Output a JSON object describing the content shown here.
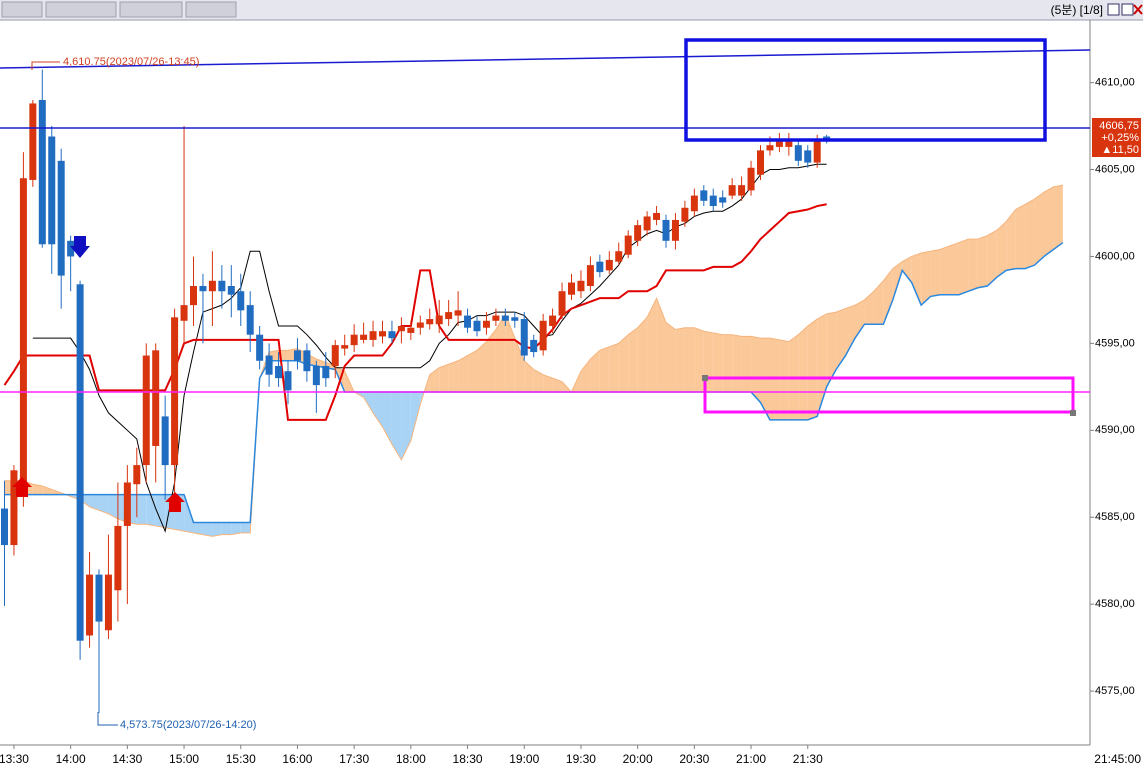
{
  "header": {
    "title": "(5분) [1/8]"
  },
  "chart_data": {
    "type": "candlestick",
    "categories": [
      null,
      "13:30",
      null,
      null,
      null,
      null,
      null,
      "14:00",
      null,
      null,
      null,
      null,
      null,
      "14:30",
      null,
      null,
      null,
      null,
      null,
      "15:00",
      null,
      null,
      null,
      null,
      null,
      "15:30",
      null,
      null,
      null,
      null,
      null,
      "16:00",
      null,
      null,
      null,
      null,
      null,
      "17:30",
      null,
      null,
      null,
      null,
      null,
      "18:00",
      null,
      null,
      null,
      null,
      null,
      "18:30",
      null,
      null,
      null,
      null,
      null,
      "19:00",
      null,
      null,
      null,
      null,
      null,
      "19:30",
      null,
      null,
      null,
      null,
      null,
      "20:00",
      null,
      null,
      null,
      null,
      null,
      "20:30",
      null,
      null,
      null,
      null,
      null,
      "21:00",
      null,
      null,
      null,
      null,
      null,
      "21:30",
      null,
      null,
      null,
      null,
      null,
      null,
      null,
      null,
      null,
      null,
      null,
      null,
      null,
      null,
      null,
      null,
      null,
      null,
      null,
      null,
      null,
      null,
      null,
      null,
      null,
      null,
      null
    ],
    "x_end_label": "21:45:00",
    "candles": {
      "up_color": "#d8340e",
      "down_color": "#1f6cc0",
      "open": [
        4585.5,
        4583.4,
        4586.6,
        4604.4,
        4609,
        4606.9,
        4605.5,
        4600.9,
        4598.4,
        4578.2,
        4581.7,
        4578.5,
        4580.8,
        4584.5,
        4586.9,
        4588,
        4589.1,
        4590.8,
        4588,
        4596.3,
        4597.2,
        4598.3,
        4598,
        4598.6,
        4598.3,
        4598,
        4597.2,
        4595.5,
        4594.3,
        4593.7,
        4593.4,
        4594.6,
        4594.6,
        4593.7,
        4593.7,
        4593.7,
        4594.7,
        4594.9,
        4595.2,
        4595.2,
        4595.4,
        4595.7,
        4595.7,
        4595.6,
        4595.9,
        4596.1,
        4596.1,
        4596.4,
        4596.6,
        4596.6,
        4596.3,
        4595.9,
        4596.3,
        4596.6,
        4596.5,
        4596.4,
        4595.2,
        4594.6,
        4596,
        4596.6,
        4597.8,
        4598,
        4598.3,
        4599.7,
        4599.2,
        4599.7,
        4600.1,
        4600.9,
        4601.5,
        4602.1,
        4602.1,
        4600.9,
        4602,
        4602.6,
        4603.8,
        4603.5,
        4603.4,
        4603.5,
        4603.5,
        4603.8,
        4604.7,
        4606.1,
        4606.3,
        4606.3,
        4606.4,
        4606.1,
        4605.4,
        4606.9,
        null,
        null,
        null,
        null,
        null,
        null,
        null,
        null,
        null,
        null,
        null,
        null,
        null,
        null,
        null,
        null,
        null,
        null,
        null,
        null,
        null,
        null,
        null,
        null,
        null
      ],
      "high": [
        4587.1,
        4588,
        4606,
        4609,
        4610.75,
        4607.5,
        4606.2,
        4601.2,
        4598.6,
        4583,
        4582,
        4584,
        4587,
        4588,
        4589,
        4595,
        4595,
        4592,
        4597,
        4607.5,
        4600,
        4599,
        4600.3,
        4599.5,
        4599.5,
        4599,
        4598,
        4596,
        4595,
        4594.5,
        4594,
        4595.3,
        4595,
        4594,
        4594.5,
        4595.2,
        4595.5,
        4596.1,
        4596.2,
        4596.3,
        4596.3,
        4596.3,
        4596.5,
        4596.3,
        4596.6,
        4597,
        4597.5,
        4597.5,
        4598,
        4597,
        4596.6,
        4596.8,
        4597,
        4597,
        4596.8,
        4596.8,
        4595.5,
        4596.7,
        4597,
        4598.5,
        4599,
        4599.2,
        4600,
        4600.1,
        4600.3,
        4600.8,
        4601.5,
        4602.1,
        4602.6,
        4602.9,
        4602.4,
        4602.5,
        4603.2,
        4603.9,
        4604.1,
        4603.9,
        4603.8,
        4604.5,
        4604.6,
        4605.5,
        4606.4,
        4606.9,
        4607.1,
        4607.1,
        4606.7,
        4606.4,
        4607,
        4607,
        null,
        null,
        null,
        null,
        null,
        null,
        null,
        null,
        null,
        null,
        null,
        null,
        null,
        null,
        null,
        null,
        null,
        null,
        null,
        null,
        null,
        null,
        null,
        null,
        null
      ],
      "low": [
        4579.9,
        4582.8,
        4585.6,
        4604,
        4600.5,
        4599,
        4597,
        4598,
        4576.8,
        4577.5,
        4573.75,
        4578,
        4579,
        4580,
        4585,
        4587,
        4587,
        4586,
        4586.3,
        4595,
        4596,
        4595,
        4596,
        4597,
        4596.5,
        4596,
        4594.5,
        4593.5,
        4592.5,
        4592.5,
        4591.5,
        4593.5,
        4592.8,
        4591,
        4592.5,
        4593,
        4594.3,
        4594.5,
        4595,
        4594.8,
        4595,
        4595,
        4595,
        4595.2,
        4595.5,
        4595.8,
        4595.6,
        4596,
        4596,
        4595.6,
        4595.4,
        4595.5,
        4596,
        4596,
        4595.9,
        4594,
        4594.2,
        4594.3,
        4595.6,
        4596.4,
        4597.5,
        4597.6,
        4598,
        4598.8,
        4599,
        4599.5,
        4599.9,
        4600.6,
        4601.2,
        4601.8,
        4600.5,
        4600.4,
        4601.7,
        4602.3,
        4602.9,
        4602.6,
        4602.8,
        4603.3,
        4603.2,
        4603.5,
        4604.4,
        4605.8,
        4606,
        4605.8,
        4605.2,
        4605.1,
        4605.1,
        4606.5,
        null,
        null,
        null,
        null,
        null,
        null,
        null,
        null,
        null,
        null,
        null,
        null,
        null,
        null,
        null,
        null,
        null,
        null,
        null,
        null,
        null,
        null,
        null,
        null,
        null
      ],
      "close": [
        4583.4,
        4587.7,
        4604.5,
        4608.8,
        4600.7,
        4600.7,
        4598.9,
        4600,
        4577.9,
        4581.7,
        4579,
        4581.7,
        4584.5,
        4587,
        4588,
        4594.3,
        4594.6,
        4588,
        4596.5,
        4597.2,
        4598.3,
        4598,
        4598.6,
        4598,
        4597.8,
        4596.9,
        4595.5,
        4594,
        4593.2,
        4593,
        4592.3,
        4594,
        4593.4,
        4592.6,
        4593,
        4594.9,
        4594.9,
        4595.5,
        4595.5,
        4595.7,
        4595.7,
        4595.3,
        4596,
        4595.9,
        4596.2,
        4596.4,
        4596.6,
        4596.8,
        4596.9,
        4595.9,
        4595.7,
        4596.3,
        4596.6,
        4596.3,
        4596.3,
        4594.3,
        4594.5,
        4596.3,
        4596.6,
        4598,
        4598.5,
        4598.6,
        4599.5,
        4599.1,
        4599.8,
        4600.3,
        4601.2,
        4601.8,
        4602.3,
        4602.5,
        4600.9,
        4602.1,
        4602.8,
        4603.5,
        4603.2,
        4602.9,
        4603.1,
        4604.1,
        4604.1,
        4605.1,
        4606.1,
        4606.4,
        4606.7,
        4606.7,
        4605.5,
        4605.4,
        4606.7,
        4606.75,
        null,
        null,
        null,
        null,
        null,
        null,
        null,
        null,
        null,
        null,
        null,
        null,
        null,
        null,
        null,
        null,
        null,
        null,
        null,
        null,
        null,
        null,
        null,
        null,
        null
      ]
    },
    "lines": [
      {
        "color": "#000000",
        "values": [
          null,
          null,
          null,
          4595.3,
          4595.3,
          4595.3,
          4595.3,
          4595.3,
          4594.5,
          4593.5,
          4592,
          4591,
          4590.5,
          4590,
          4589.5,
          4587,
          4585.5,
          4584.2,
          4587,
          4592,
          4594.5,
          4596.8,
          4597,
          4597.2,
          4597.6,
          4598.2,
          4600.3,
          4600.3,
          4598,
          4596,
          4596,
          4596,
          4595.5,
          4594.9,
          4594.2,
          4593.6,
          4593.6,
          4593.6,
          4593.6,
          4593.6,
          4593.6,
          4593.6,
          4593.6,
          4593.6,
          4593.6,
          4594,
          4595,
          4595.5,
          4596.2,
          4596.3,
          4596.6,
          4596.6,
          4596.8,
          4596.8,
          4596.8,
          4596.6,
          4596,
          4595.4,
          4595.5,
          4596.3,
          4597,
          4597.3,
          4597.8,
          4598.3,
          4598.9,
          4599.5,
          4600.5,
          4600.9,
          4601.3,
          4601.5,
          4601.3,
          4601.7,
          4601.9,
          4602.3,
          4602.5,
          4602.6,
          4602.6,
          4602.9,
          4603.3,
          4604,
          4604.7,
          4605,
          4605,
          4605.1,
          4605.1,
          4605.2,
          4605.3,
          4605.3,
          null,
          null,
          null,
          null,
          null,
          null,
          null,
          null,
          null,
          null,
          null,
          null,
          null,
          null,
          null,
          null,
          null,
          null,
          null,
          null,
          null,
          null,
          null,
          null,
          null
        ]
      },
      {
        "color": "#e00000",
        "values": [
          4592.6,
          4593.4,
          4594.3,
          4594.3,
          4594.3,
          4594.3,
          4594.3,
          4594.3,
          4594.3,
          4594.3,
          4592.3,
          4592.3,
          4592.3,
          4592.3,
          4592.3,
          4592.3,
          4592.3,
          4592.3,
          4593.5,
          4595,
          4595.2,
          4595.2,
          4595.2,
          4595.2,
          4595.2,
          4595.2,
          4595.2,
          4595.2,
          4595.2,
          4595.2,
          4590.6,
          4590.6,
          4590.6,
          4590.6,
          4590.6,
          4592,
          4593.7,
          4594.3,
          4594.3,
          4594.3,
          4594.3,
          4595,
          4596,
          4596,
          4599.2,
          4599.2,
          4596,
          4595.2,
          4595.2,
          4595.2,
          4595.2,
          4595.2,
          4595.2,
          4595.2,
          4595.2,
          4594.8,
          4594.7,
          4595.2,
          4595.8,
          4596.6,
          4597,
          4597.2,
          4597.4,
          4597.6,
          4597.6,
          4597.6,
          4598,
          4598,
          4598,
          4598.3,
          4599.2,
          4599.2,
          4599.2,
          4599.2,
          4599.2,
          4599.4,
          4599.4,
          4599.4,
          4599.7,
          4600.3,
          4601,
          4601.5,
          4602,
          4602.5,
          4602.6,
          4602.7,
          4602.9,
          4603,
          null,
          null,
          null,
          null,
          null,
          null,
          null,
          null,
          null,
          null,
          null,
          null,
          null,
          null,
          null,
          null,
          null,
          null,
          null,
          null,
          null,
          null,
          null,
          null,
          null
        ]
      }
    ],
    "cloud": {
      "fill_up": "#fbc89a",
      "fill_down": "#a9d3f5",
      "span_a": {
        "color": "#f6b47c",
        "values": [
          4587.1,
          4587.1,
          4587.1,
          4586.9,
          4586.8,
          4586.6,
          4586.4,
          4586.2,
          4586,
          4585.6,
          4585.4,
          4585.2,
          4584.9,
          4584.7,
          4584.6,
          4584.6,
          4584.5,
          4584.4,
          4584.3,
          4584.2,
          4584.1,
          4584,
          4583.9,
          4584,
          4584,
          4584.1,
          4584.1,
          4593,
          4594.5,
          4594.6,
          4594.6,
          4594.7,
          4594.4,
          4594.1,
          4593.9,
          4593.7,
          4593.4,
          4592.2,
          4591.9,
          4591,
          4590.2,
          4589.2,
          4588.3,
          4589.4,
          4591.5,
          4593.2,
          4593.6,
          4593.8,
          4594,
          4594.3,
          4594.6,
          4595.1,
          4595.8,
          4596.7,
          4595.3,
          4594,
          4593.5,
          4593.2,
          4593,
          4592.8,
          4592.2,
          4593.4,
          4594.1,
          4594.6,
          4594.8,
          4595,
          4595.5,
          4595.9,
          4596.5,
          4597.6,
          4596.2,
          4595.8,
          4595.9,
          4595.9,
          4595.7,
          4595.6,
          4595.5,
          4595.5,
          4595.4,
          4595.4,
          4595.3,
          4595.3,
          4595.2,
          4595.1,
          4595.5,
          4596,
          4596.4,
          4596.7,
          4596.8,
          4597,
          4597.2,
          4597.5,
          4598,
          4598.6,
          4599.3,
          4599.7,
          4600,
          4600.2,
          4600.3,
          4600.4,
          4600.6,
          4600.8,
          4601,
          4601,
          4601.2,
          4601.5,
          4602,
          4602.7,
          4603,
          4603.3,
          4603.7,
          4604,
          4604.1
        ]
      },
      "span_b": {
        "color": "#2b88dd",
        "values": [
          4586.3,
          4586.3,
          4586.3,
          4586.3,
          4586.3,
          4586.3,
          4586.3,
          4586.3,
          4586.3,
          4586.3,
          4586.3,
          4586.3,
          4586.3,
          4586.3,
          4586.3,
          4586.3,
          4586.3,
          4586.3,
          4586.3,
          4586.3,
          4584.7,
          4584.7,
          4584.7,
          4584.7,
          4584.7,
          4584.7,
          4584.7,
          4593,
          4594,
          4594,
          4594,
          4594,
          4593.8,
          4593.7,
          4593.6,
          4593.5,
          4592.2,
          4592.2,
          4592.2,
          4592.2,
          4592.2,
          4592.2,
          4592.2,
          4592.2,
          4592.2,
          4592.2,
          4592.2,
          4592.2,
          4592.2,
          4592.2,
          4592.2,
          4592.2,
          4592.2,
          4592.2,
          4592.2,
          4592.2,
          4592.2,
          4592.2,
          4592.2,
          4592.2,
          4592.2,
          4592.2,
          4592.2,
          4592.2,
          4592.2,
          4592.2,
          4592.2,
          4592.2,
          4592.2,
          4592.2,
          4592.2,
          4592.2,
          4592.2,
          4592.2,
          4592.2,
          4592.2,
          4592.2,
          4592.2,
          4592.2,
          4592.2,
          4591.6,
          4590.6,
          4590.6,
          4590.6,
          4590.6,
          4590.6,
          4590.8,
          4592.5,
          4593.5,
          4594.3,
          4595.3,
          4596.1,
          4596.1,
          4596.1,
          4597.5,
          4599.2,
          4598.5,
          4597.2,
          4597.7,
          4597.8,
          4597.8,
          4597.8,
          4598,
          4598.2,
          4598.3,
          4598.8,
          4599.2,
          4599.3,
          4599.3,
          4599.5,
          4600,
          4600.4,
          4600.8
        ]
      }
    },
    "ylim": [
      4571.9,
      4613.6
    ],
    "yticks": [
      {
        "value": 4575,
        "label": "4575,00"
      },
      {
        "value": 4580,
        "label": "4580,00"
      },
      {
        "value": 4585,
        "label": "4585,00"
      },
      {
        "value": 4590,
        "label": "4590,00"
      },
      {
        "value": 4595,
        "label": "4595,00"
      },
      {
        "value": 4600,
        "label": "4600,00"
      },
      {
        "value": 4605,
        "label": "4605,00"
      },
      {
        "value": 4610,
        "label": "4610,00"
      }
    ],
    "annotations": {
      "high": "4,610.75(2023/07/26-13:45)",
      "low": "4,573.75(2023/07/26-14:20)"
    },
    "last_price": {
      "price": "4606,75",
      "change_pct": "+0,25%",
      "change": "▲11,50"
    }
  }
}
